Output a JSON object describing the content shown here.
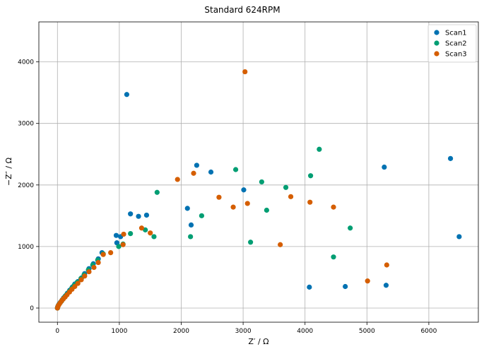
{
  "chart_data": {
    "type": "scatter",
    "title": "Standard 624RPM",
    "xlabel": "Z′ / Ω",
    "ylabel": "−Z″ / Ω",
    "xlim": [
      -300,
      6800
    ],
    "ylim": [
      -230,
      4650
    ],
    "xticks": [
      0,
      1000,
      2000,
      3000,
      4000,
      5000,
      6000
    ],
    "yticks": [
      0,
      1000,
      2000,
      3000,
      4000
    ],
    "grid": true,
    "legend": "top-right",
    "series": [
      {
        "name": "Scan1",
        "color": "#0072B2",
        "points": [
          [
            0,
            0
          ],
          [
            5,
            20
          ],
          [
            15,
            45
          ],
          [
            30,
            70
          ],
          [
            50,
            95
          ],
          [
            75,
            130
          ],
          [
            100,
            165
          ],
          [
            130,
            200
          ],
          [
            160,
            240
          ],
          [
            200,
            290
          ],
          [
            240,
            340
          ],
          [
            280,
            390
          ],
          [
            330,
            430
          ],
          [
            390,
            490
          ],
          [
            440,
            560
          ],
          [
            510,
            640
          ],
          [
            580,
            720
          ],
          [
            660,
            800
          ],
          [
            720,
            900
          ],
          [
            960,
            1060
          ],
          [
            950,
            1180
          ],
          [
            1020,
            1160
          ],
          [
            1180,
            1530
          ],
          [
            1310,
            1490
          ],
          [
            1440,
            1510
          ],
          [
            1120,
            3470
          ],
          [
            2100,
            1620
          ],
          [
            2160,
            1350
          ],
          [
            2250,
            2320
          ],
          [
            2480,
            2210
          ],
          [
            3010,
            1920
          ],
          [
            4070,
            340
          ],
          [
            4650,
            350
          ],
          [
            5280,
            2290
          ],
          [
            5310,
            370
          ],
          [
            6350,
            2430
          ],
          [
            6490,
            1160
          ]
        ]
      },
      {
        "name": "Scan2",
        "color": "#009E73",
        "points": [
          [
            0,
            0
          ],
          [
            8,
            25
          ],
          [
            20,
            50
          ],
          [
            40,
            80
          ],
          [
            65,
            110
          ],
          [
            90,
            145
          ],
          [
            120,
            185
          ],
          [
            150,
            220
          ],
          [
            190,
            270
          ],
          [
            230,
            320
          ],
          [
            270,
            370
          ],
          [
            320,
            420
          ],
          [
            380,
            480
          ],
          [
            430,
            540
          ],
          [
            500,
            620
          ],
          [
            570,
            700
          ],
          [
            650,
            780
          ],
          [
            740,
            880
          ],
          [
            990,
            1000
          ],
          [
            1060,
            1040
          ],
          [
            1180,
            1210
          ],
          [
            1420,
            1270
          ],
          [
            1560,
            1160
          ],
          [
            1610,
            1880
          ],
          [
            2150,
            1160
          ],
          [
            2330,
            1500
          ],
          [
            2880,
            2250
          ],
          [
            3120,
            1070
          ],
          [
            3300,
            2050
          ],
          [
            3380,
            1590
          ],
          [
            3690,
            1960
          ],
          [
            4090,
            2150
          ],
          [
            4230,
            2580
          ],
          [
            4460,
            830
          ],
          [
            4730,
            1300
          ]
        ]
      },
      {
        "name": "Scan3",
        "color": "#D55E00",
        "points": [
          [
            0,
            0
          ],
          [
            10,
            30
          ],
          [
            25,
            55
          ],
          [
            45,
            85
          ],
          [
            70,
            120
          ],
          [
            95,
            150
          ],
          [
            125,
            180
          ],
          [
            155,
            215
          ],
          [
            195,
            260
          ],
          [
            235,
            305
          ],
          [
            280,
            350
          ],
          [
            330,
            400
          ],
          [
            385,
            460
          ],
          [
            440,
            520
          ],
          [
            510,
            590
          ],
          [
            590,
            660
          ],
          [
            660,
            740
          ],
          [
            740,
            870
          ],
          [
            860,
            900
          ],
          [
            1060,
            1030
          ],
          [
            1070,
            1200
          ],
          [
            1360,
            1300
          ],
          [
            1500,
            1220
          ],
          [
            1940,
            2090
          ],
          [
            2200,
            2190
          ],
          [
            2610,
            1800
          ],
          [
            2840,
            1640
          ],
          [
            3030,
            3840
          ],
          [
            3070,
            1700
          ],
          [
            3600,
            1030
          ],
          [
            3770,
            1810
          ],
          [
            4080,
            1720
          ],
          [
            4460,
            1640
          ],
          [
            5010,
            440
          ],
          [
            5320,
            700
          ]
        ]
      }
    ]
  }
}
